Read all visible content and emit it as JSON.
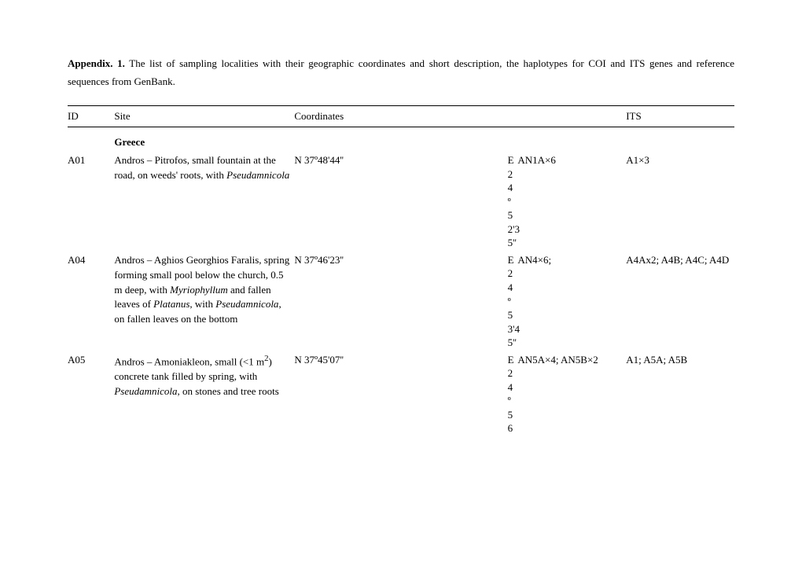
{
  "caption": {
    "label": "Appendix. 1.",
    "text": " The list of sampling localities with their geographic coordinates and short description, the haplotypes for COI and ITS genes and reference sequences from GenBank."
  },
  "headers": {
    "id": "ID",
    "site": "Site",
    "coordinates": "Coordinates",
    "its": "ITS"
  },
  "region": "Greece",
  "rows": {
    "r1": {
      "id": "A01",
      "site_pre": "Andros – Pitrofos, small fountain at the road, on weeds' roots, with ",
      "site_it": "Pseudamnicola",
      "coordN": "N 37º48'44''",
      "coordE": "E 24º52'35''",
      "coi": "AN1A×6",
      "its": "A1×3"
    },
    "r2": {
      "id": "A04",
      "site_a": "Andros – Aghios Georghios Faralis, spring forming small pool below the church, 0.5 m deep, with ",
      "site_it1": "Myriophyllum",
      "site_b": " and fallen leaves of ",
      "site_it2": "Platanus",
      "site_c": ", with ",
      "site_it3": "Pseudamnicola",
      "site_d": ", on fallen leaves on the bottom",
      "coordN": "N 37º46'23''",
      "coordE": "E 24º53'45''",
      "coi": "AN4×6;",
      "its": "A4Ax2; A4B; A4C; A4D"
    },
    "r3": {
      "id": "A05",
      "site_a": "Andros – Amoniakleon, small (<1 m",
      "site_sup": "2",
      "site_b": ") concrete tank filled by spring, with ",
      "site_it": "Pseudamnicola",
      "site_c": ", on stones and tree roots",
      "coordN": "N 37º45'07''",
      "coordE": "E 24º56",
      "coi": "AN5A×4; AN5B×2",
      "its": "A1; A5A; A5B"
    }
  }
}
